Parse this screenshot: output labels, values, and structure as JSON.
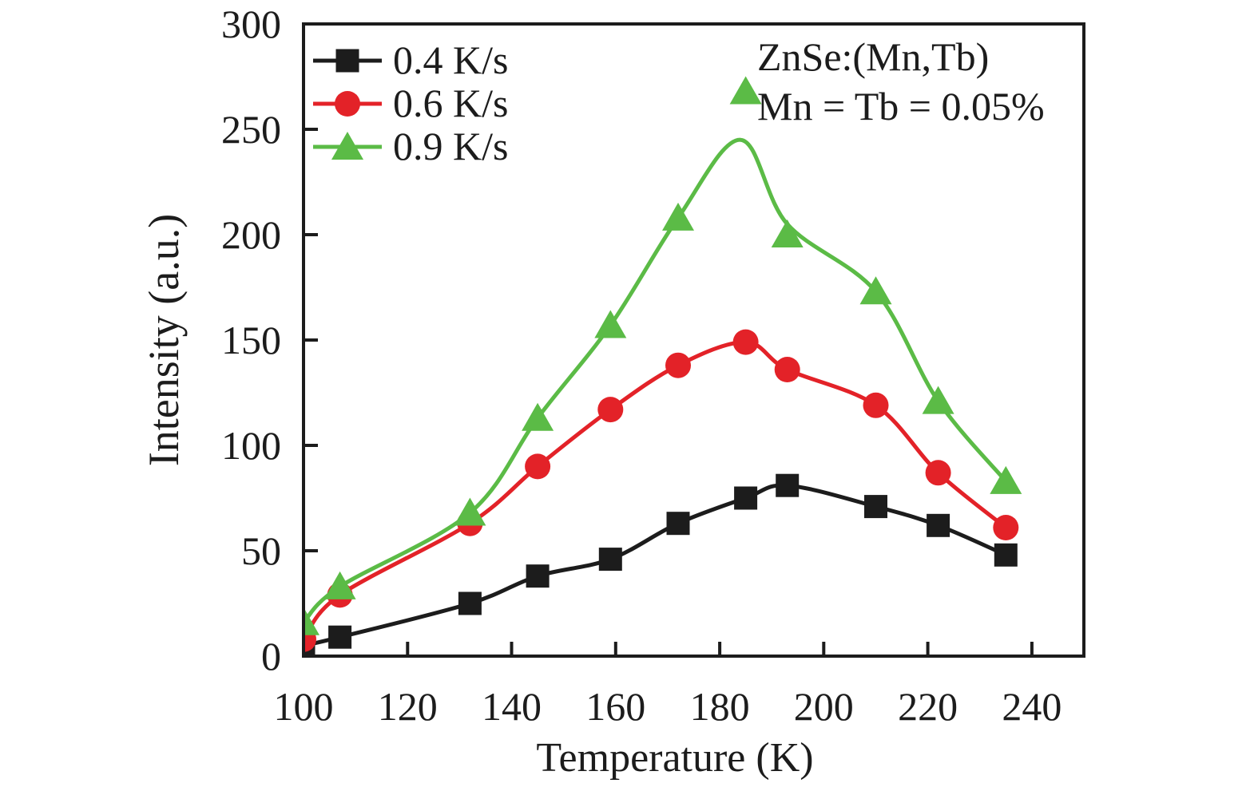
{
  "colors": {
    "background": "#ffffff",
    "axis": "#1c1c1c",
    "text": "#1c1c1c",
    "series_black": "#1c1c1c",
    "series_red": "#e32228",
    "series_green": "#5bbb46"
  },
  "labels": {
    "x_axis": "Temperature (K)",
    "y_axis": "Intensity (a.u.)",
    "annotation_line1": "ZnSe:(Mn,Tb)",
    "annotation_line2": "Mn = Tb = 0.05%"
  },
  "chart_data": {
    "type": "line",
    "title": "",
    "xlabel": "Temperature (K)",
    "ylabel": "Intensity (a.u.)",
    "xlim": [
      100,
      250
    ],
    "ylim": [
      0,
      300
    ],
    "x_ticks": [
      100,
      120,
      140,
      160,
      180,
      200,
      220,
      240
    ],
    "y_ticks": [
      0,
      50,
      100,
      150,
      200,
      250,
      300
    ],
    "grid": false,
    "legend_position": "top-left",
    "annotations": [
      "ZnSe:(Mn,Tb)",
      "Mn = Tb = 0.05%"
    ],
    "categories": [
      100,
      107,
      132,
      145,
      159,
      172,
      185,
      193,
      210,
      222,
      235
    ],
    "series": [
      {
        "name": "0.4 K/s",
        "marker": "square",
        "color": "#1c1c1c",
        "x": [
          100,
          107,
          132,
          145,
          159,
          172,
          185,
          193,
          210,
          222,
          235
        ],
        "y": [
          5,
          9,
          25,
          38,
          46,
          63,
          75,
          81,
          71,
          62,
          48
        ]
      },
      {
        "name": "0.6 K/s",
        "marker": "circle",
        "color": "#e32228",
        "x": [
          100,
          107,
          132,
          145,
          159,
          172,
          185,
          193,
          210,
          222,
          235
        ],
        "y": [
          8,
          29,
          63,
          90,
          117,
          138,
          149,
          136,
          119,
          87,
          61
        ]
      },
      {
        "name": "0.9 K/s",
        "marker": "triangle",
        "color": "#5bbb46",
        "x": [
          100,
          107,
          132,
          145,
          159,
          172,
          185,
          193,
          210,
          222,
          235
        ],
        "y": [
          16,
          33,
          68,
          113,
          157,
          208,
          268,
          200,
          173,
          121,
          83
        ],
        "curve_x": [
          100,
          107,
          132,
          145,
          159,
          172,
          184,
          193,
          210,
          222,
          235
        ],
        "curve_y": [
          16,
          33,
          68,
          113,
          157,
          208,
          245,
          205,
          173,
          121,
          83
        ]
      }
    ]
  }
}
